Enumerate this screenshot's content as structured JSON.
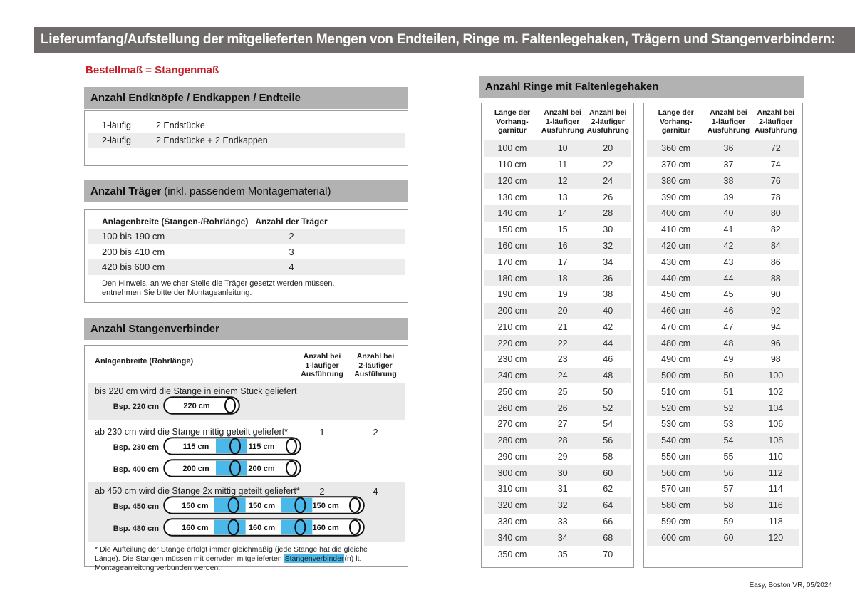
{
  "page": {
    "title": "Lieferumfang/Aufstellung der mitgelieferten Mengen von Endteilen, Ringe m. Faltenlegehaken, Trägern und Stangenverbindern:",
    "footer": "Easy, Boston VR, 05/2024",
    "colors": {
      "topbar_gray": "#6f6b6b",
      "section_header_gray": "#b2b2b2",
      "stripe_gray": "#ececec",
      "accent_red": "#c5202a",
      "highlight_cyan": "#4ab9e9"
    }
  },
  "left": {
    "order_note": "Bestellmaß = Stangenmaß",
    "end_pieces": {
      "title": "Anzahl Endknöpfe / Endkappen / Endteile",
      "rows": [
        {
          "label": "1-läufig",
          "value": "2 Endstücke"
        },
        {
          "label": "2-läufig",
          "value": "2 Endstücke + 2 Endkappen"
        }
      ]
    },
    "traeger": {
      "title_bold": "Anzahl Träger",
      "title_rest": "(inkl. passendem Montagematerial)",
      "col1": "Anlagenbreite (Stangen-/Rohrlänge)",
      "col2": "Anzahl der Träger",
      "rows": [
        {
          "range": "100 bis 190 cm",
          "count": "2"
        },
        {
          "range": "200 bis 410 cm",
          "count": "3"
        },
        {
          "range": "420 bis 600 cm",
          "count": "4"
        }
      ],
      "note": "Den Hinweis, an welcher Stelle die Träger gesetzt werden müssen, entnehmen Sie bitte der Montageanleitung."
    },
    "verbinder": {
      "title": "Anzahl Stangenverbinder",
      "col1": "Anlagenbreite (Rohrlänge)",
      "col2_lines": [
        "Anzahl bei",
        "1-läufiger",
        "Ausführung"
      ],
      "col3_lines": [
        "Anzahl bei",
        "2-läufiger",
        "Ausführung"
      ],
      "rows": [
        {
          "text": "bis 220 cm wird die Stange in einem Stück geliefert",
          "v1": "-",
          "v2": "-",
          "examples": [
            {
              "label": "Bsp. 220 cm",
              "segments": [
                "220 cm"
              ]
            }
          ]
        },
        {
          "text": "ab 230 cm wird die Stange mittig geteilt geliefert*",
          "v1": "1",
          "v2": "2",
          "examples": [
            {
              "label": "Bsp. 230 cm",
              "segments": [
                "115 cm",
                "115 cm"
              ]
            },
            {
              "label": "Bsp. 400 cm",
              "segments": [
                "200 cm",
                "200 cm"
              ]
            }
          ]
        },
        {
          "text": "ab 450 cm wird die Stange 2x mittig geteilt geliefert*",
          "v1": "2",
          "v2": "4",
          "examples": [
            {
              "label": "Bsp. 450 cm",
              "segments": [
                "150 cm",
                "150 cm",
                "150 cm"
              ]
            },
            {
              "label": "Bsp. 480 cm",
              "segments": [
                "160 cm",
                "160 cm",
                "160 cm"
              ]
            }
          ]
        }
      ],
      "footnote_pre": "* Die Aufteilung der Stange erfolgt immer gleichmäßig (jede Stange hat die gleiche Länge). Die Stangen müssen mit dem/den mitgelieferten ",
      "footnote_highlight": "Stangenverbinder",
      "footnote_post": "(n) lt. Montageanleitung verbunden werden."
    }
  },
  "rings": {
    "title": "Anzahl Ringe mit Faltenlegehaken",
    "col_headers": [
      [
        "Länge der",
        "Vorhang-",
        "garnitur"
      ],
      [
        "Anzahl bei",
        "1-läufiger",
        "Ausführung"
      ],
      [
        "Anzahl bei",
        "2-läufiger",
        "Ausführung"
      ]
    ],
    "table1": [
      [
        "100 cm",
        "10",
        "20"
      ],
      [
        "110 cm",
        "11",
        "22"
      ],
      [
        "120 cm",
        "12",
        "24"
      ],
      [
        "130 cm",
        "13",
        "26"
      ],
      [
        "140 cm",
        "14",
        "28"
      ],
      [
        "150 cm",
        "15",
        "30"
      ],
      [
        "160 cm",
        "16",
        "32"
      ],
      [
        "170 cm",
        "17",
        "34"
      ],
      [
        "180 cm",
        "18",
        "36"
      ],
      [
        "190 cm",
        "19",
        "38"
      ],
      [
        "200 cm",
        "20",
        "40"
      ],
      [
        "210 cm",
        "21",
        "42"
      ],
      [
        "220 cm",
        "22",
        "44"
      ],
      [
        "230 cm",
        "23",
        "46"
      ],
      [
        "240 cm",
        "24",
        "48"
      ],
      [
        "250 cm",
        "25",
        "50"
      ],
      [
        "260 cm",
        "26",
        "52"
      ],
      [
        "270 cm",
        "27",
        "54"
      ],
      [
        "280 cm",
        "28",
        "56"
      ],
      [
        "290 cm",
        "29",
        "58"
      ],
      [
        "300 cm",
        "30",
        "60"
      ],
      [
        "310 cm",
        "31",
        "62"
      ],
      [
        "320 cm",
        "32",
        "64"
      ],
      [
        "330 cm",
        "33",
        "66"
      ],
      [
        "340 cm",
        "34",
        "68"
      ],
      [
        "350 cm",
        "35",
        "70"
      ]
    ],
    "table2": [
      [
        "360 cm",
        "36",
        "72"
      ],
      [
        "370 cm",
        "37",
        "74"
      ],
      [
        "380 cm",
        "38",
        "76"
      ],
      [
        "390 cm",
        "39",
        "78"
      ],
      [
        "400 cm",
        "40",
        "80"
      ],
      [
        "410 cm",
        "41",
        "82"
      ],
      [
        "420 cm",
        "42",
        "84"
      ],
      [
        "430 cm",
        "43",
        "86"
      ],
      [
        "440 cm",
        "44",
        "88"
      ],
      [
        "450 cm",
        "45",
        "90"
      ],
      [
        "460 cm",
        "46",
        "92"
      ],
      [
        "470 cm",
        "47",
        "94"
      ],
      [
        "480 cm",
        "48",
        "96"
      ],
      [
        "490 cm",
        "49",
        "98"
      ],
      [
        "500 cm",
        "50",
        "100"
      ],
      [
        "510 cm",
        "51",
        "102"
      ],
      [
        "520 cm",
        "52",
        "104"
      ],
      [
        "530 cm",
        "53",
        "106"
      ],
      [
        "540 cm",
        "54",
        "108"
      ],
      [
        "550 cm",
        "55",
        "110"
      ],
      [
        "560 cm",
        "56",
        "112"
      ],
      [
        "570 cm",
        "57",
        "114"
      ],
      [
        "580 cm",
        "58",
        "116"
      ],
      [
        "590 cm",
        "59",
        "118"
      ],
      [
        "600 cm",
        "60",
        "120"
      ]
    ]
  }
}
